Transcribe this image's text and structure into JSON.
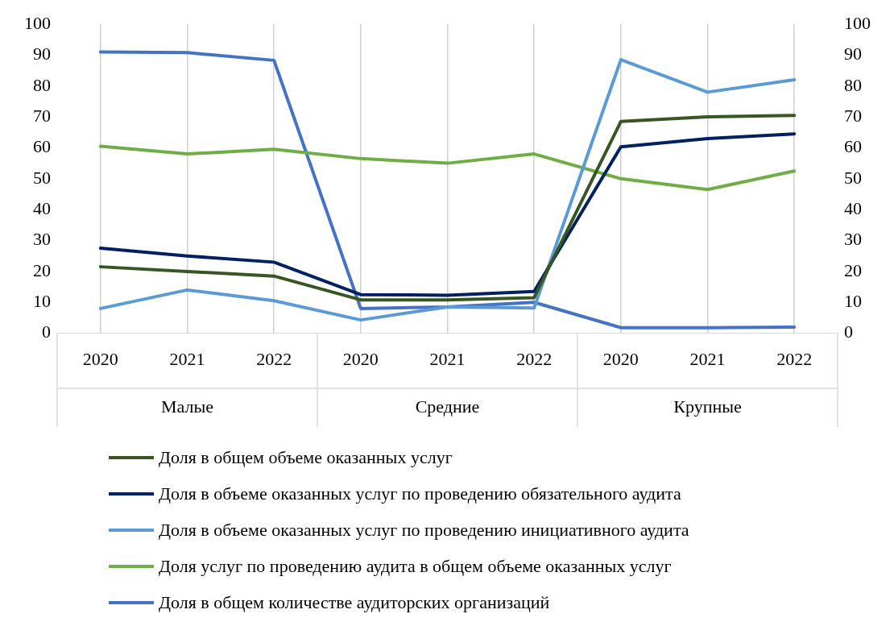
{
  "chart_data": {
    "type": "line",
    "categories": [
      "2020",
      "2021",
      "2022",
      "2020",
      "2021",
      "2022",
      "2020",
      "2021",
      "2022"
    ],
    "annotations": [
      "Малые",
      "Средние",
      "Крупные"
    ],
    "series": [
      {
        "name": "Доля в общем объеме оказанных услуг",
        "color": "#375623",
        "values": [
          21.5,
          20,
          18.5,
          10.8,
          10.8,
          11.5,
          68.5,
          70,
          70.5
        ]
      },
      {
        "name": "Доля в объеме оказанных услуг по проведению обязательного аудита",
        "color": "#002060",
        "values": [
          27.5,
          25,
          23,
          12.5,
          12.3,
          13.5,
          60.3,
          63,
          64.5
        ]
      },
      {
        "name": "Доля в объеме оказанных услуг по проведению инициативного аудита",
        "color": "#5b9bd5",
        "values": [
          8,
          14,
          10.5,
          4.3,
          8.5,
          8.2,
          88.5,
          78,
          82
        ]
      },
      {
        "name": "Доля услуг по проведению аудита в общем объеме оказанных услуг",
        "color": "#70ad47",
        "values": [
          60.5,
          58,
          59.5,
          56.5,
          55,
          58,
          50,
          46.5,
          52.5
        ]
      },
      {
        "name": "Доля в общем количестве аудиторских организаций",
        "color": "#4472c4",
        "values": [
          91,
          90.8,
          88.3,
          8,
          8.5,
          10,
          1.8,
          1.8,
          2
        ]
      }
    ],
    "ylim": [
      0,
      100
    ],
    "yticks": [
      0,
      10,
      20,
      30,
      40,
      50,
      60,
      70,
      80,
      90,
      100
    ],
    "y2lim": [
      0,
      100
    ],
    "y2ticks": [
      0,
      10,
      20,
      30,
      40,
      50,
      60,
      70,
      80,
      90,
      100
    ],
    "grid": "x",
    "legend": "bottom",
    "marker": "none",
    "line_style": "solid"
  }
}
